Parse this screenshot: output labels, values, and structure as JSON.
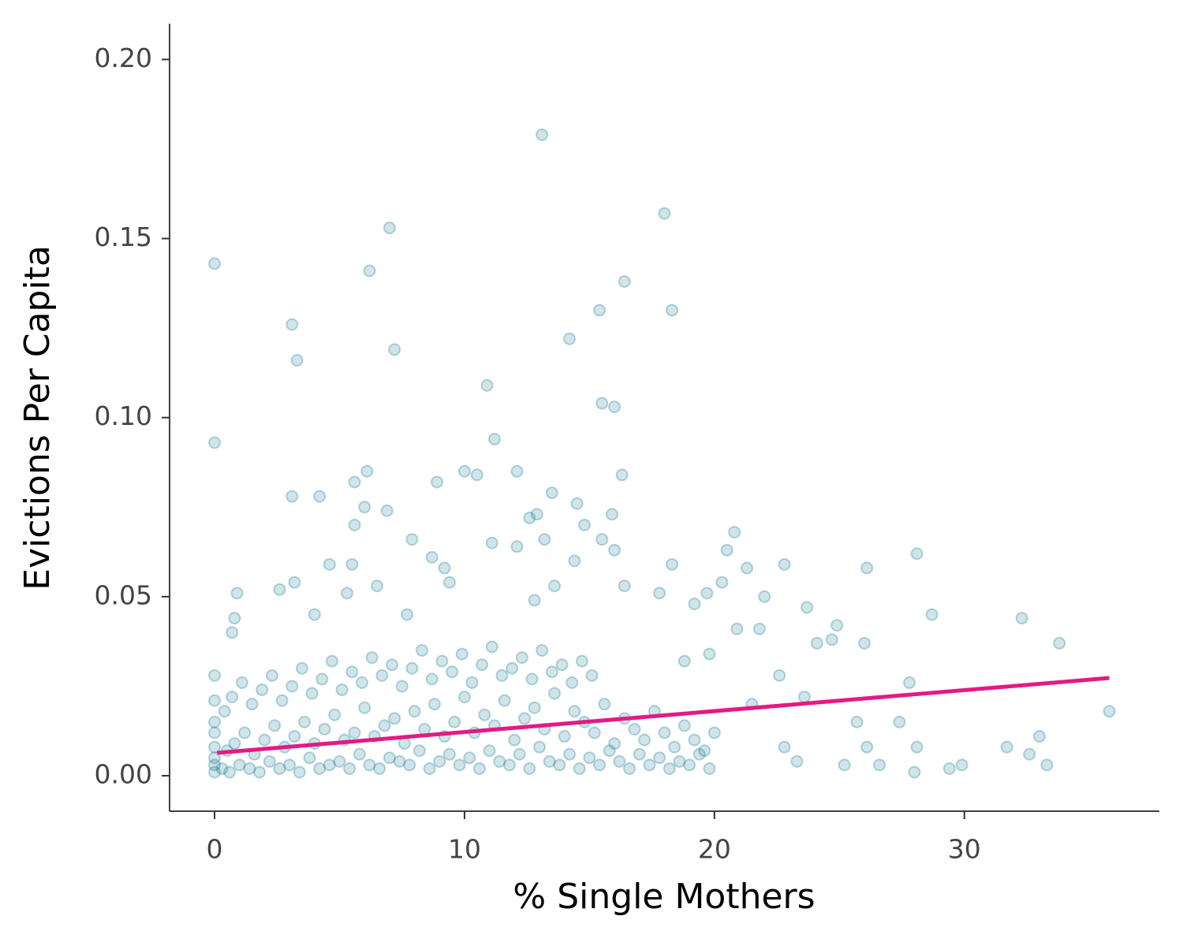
{
  "chart_data": {
    "type": "scatter",
    "x_label": "% Single Mothers",
    "y_label": "Evictions Per Capita",
    "color": "#137a93",
    "xlim": [
      -1.8,
      37.8
    ],
    "ylim": [
      -0.0099,
      0.21
    ],
    "xticks": [
      0,
      10,
      20,
      30
    ],
    "yticks": [
      {
        "value": 0,
        "label": "0.00"
      },
      {
        "value": 0.05,
        "label": "0.05"
      },
      {
        "value": 0.1,
        "label": "0.10"
      },
      {
        "value": 0.15,
        "label": "0.15"
      },
      {
        "value": 0.2,
        "label": "0.20"
      }
    ],
    "x": [
      0,
      0,
      3.1,
      3.3,
      6.2,
      7.0,
      7.2,
      13.1,
      18,
      18.3,
      16.4,
      15.4,
      14.2,
      10.9,
      15.5,
      16,
      11.2,
      3.1,
      4.2,
      5.6,
      6.1,
      8.9,
      10,
      10.5,
      12.1,
      13.5,
      16.3,
      14.5,
      12.6,
      12.9,
      14.8,
      15.9,
      6.0,
      6.9,
      5.6,
      7.9,
      11.1,
      12.1,
      13.2,
      15.5,
      16,
      20.5,
      20.8,
      28.1,
      8.7,
      9.2,
      14.4,
      18.3,
      21.3,
      22.8,
      26.1,
      4.6,
      5.5,
      3.2,
      2.6,
      0.9,
      5.3,
      6.5,
      9.4,
      12.8,
      13.6,
      16.4,
      17.8,
      19.7,
      20.3,
      22,
      23.7,
      24.9,
      32.3,
      33.8,
      28.7,
      35.8,
      29.9,
      29.4,
      31.7,
      32.6,
      33,
      33.3,
      28.1,
      27.8,
      27.4,
      28,
      26.6,
      26.1,
      25.2,
      25.7,
      26,
      24.7,
      24.1,
      23.6,
      22.6,
      22.8,
      23.3,
      21.5,
      20.9,
      21.8,
      19.8,
      19.2,
      18.8,
      0.7,
      0.8,
      4,
      7.7,
      0,
      0,
      0,
      0,
      0,
      0,
      0,
      0,
      0.3,
      0.6,
      1,
      1.4,
      1.8,
      2.2,
      2.6,
      3,
      3.4,
      3.8,
      4.2,
      4.6,
      5,
      5.4,
      5.8,
      6.2,
      6.6,
      7,
      7.4,
      7.8,
      8.2,
      8.6,
      9,
      9.4,
      9.8,
      10.2,
      10.6,
      11,
      11.4,
      11.8,
      12.2,
      12.6,
      13,
      13.4,
      13.8,
      14.2,
      14.6,
      15,
      15.4,
      15.8,
      16.2,
      16.6,
      17,
      17.4,
      17.8,
      18.2,
      18.6,
      19,
      19.4,
      19.8,
      0.5,
      0.8,
      1.2,
      1.6,
      2,
      2.4,
      2.8,
      3.2,
      3.6,
      4,
      4.4,
      4.8,
      5.2,
      5.6,
      6,
      6.4,
      6.8,
      7.2,
      7.6,
      8,
      8.4,
      8.8,
      9.2,
      9.6,
      10,
      10.4,
      10.8,
      11.2,
      11.6,
      12,
      12.4,
      12.8,
      13.2,
      13.6,
      14,
      14.4,
      14.8,
      15.2,
      15.6,
      16,
      16.4,
      16.8,
      17.2,
      17.6,
      18,
      18.4,
      18.8,
      19.2,
      19.6,
      20,
      0.4,
      0.7,
      1.1,
      1.5,
      1.9,
      2.3,
      2.7,
      3.1,
      3.5,
      3.9,
      4.3,
      4.7,
      5.1,
      5.5,
      5.9,
      6.3,
      6.7,
      7.1,
      7.5,
      7.9,
      8.3,
      8.7,
      9.1,
      9.5,
      9.9,
      10.3,
      10.7,
      11.1,
      11.5,
      11.9,
      12.3,
      12.7,
      13.1,
      13.5,
      13.9,
      14.3,
      14.7,
      15.1
    ],
    "values": [
      0.143,
      0.093,
      0.126,
      0.116,
      0.141,
      0.153,
      0.119,
      0.179,
      0.157,
      0.13,
      0.138,
      0.13,
      0.122,
      0.109,
      0.104,
      0.103,
      0.094,
      0.078,
      0.078,
      0.082,
      0.085,
      0.082,
      0.085,
      0.084,
      0.085,
      0.079,
      0.084,
      0.076,
      0.072,
      0.073,
      0.07,
      0.073,
      0.075,
      0.074,
      0.07,
      0.066,
      0.065,
      0.064,
      0.066,
      0.066,
      0.063,
      0.063,
      0.068,
      0.062,
      0.061,
      0.058,
      0.06,
      0.059,
      0.058,
      0.059,
      0.058,
      0.059,
      0.059,
      0.054,
      0.052,
      0.051,
      0.051,
      0.053,
      0.054,
      0.049,
      0.053,
      0.053,
      0.051,
      0.051,
      0.054,
      0.05,
      0.047,
      0.042,
      0.044,
      0.037,
      0.045,
      0.018,
      0.003,
      0.002,
      0.008,
      0.006,
      0.011,
      0.003,
      0.008,
      0.026,
      0.015,
      0.001,
      0.003,
      0.008,
      0.003,
      0.015,
      0.037,
      0.038,
      0.037,
      0.022,
      0.028,
      0.008,
      0.004,
      0.02,
      0.041,
      0.041,
      0.034,
      0.048,
      0.032,
      0.04,
      0.044,
      0.045,
      0.045,
      0.028,
      0.021,
      0.015,
      0.012,
      0.008,
      0.005,
      0.003,
      0.001,
      0.002,
      0.001,
      0.003,
      0.002,
      0.001,
      0.004,
      0.002,
      0.003,
      0.001,
      0.005,
      0.002,
      0.003,
      0.004,
      0.002,
      0.006,
      0.003,
      0.002,
      0.005,
      0.004,
      0.003,
      0.007,
      0.002,
      0.004,
      0.006,
      0.003,
      0.005,
      0.002,
      0.007,
      0.004,
      0.003,
      0.006,
      0.002,
      0.008,
      0.004,
      0.003,
      0.006,
      0.002,
      0.005,
      0.003,
      0.007,
      0.004,
      0.002,
      0.006,
      0.003,
      0.005,
      0.002,
      0.004,
      0.003,
      0.006,
      0.002,
      0.007,
      0.009,
      0.012,
      0.006,
      0.01,
      0.014,
      0.008,
      0.011,
      0.015,
      0.009,
      0.013,
      0.017,
      0.01,
      0.012,
      0.019,
      0.011,
      0.014,
      0.016,
      0.009,
      0.018,
      0.013,
      0.02,
      0.011,
      0.015,
      0.022,
      0.012,
      0.017,
      0.014,
      0.021,
      0.01,
      0.016,
      0.019,
      0.013,
      0.023,
      0.011,
      0.018,
      0.015,
      0.012,
      0.02,
      0.009,
      0.016,
      0.013,
      0.01,
      0.018,
      0.012,
      0.008,
      0.014,
      0.01,
      0.007,
      0.012,
      0.018,
      0.022,
      0.026,
      0.02,
      0.024,
      0.028,
      0.021,
      0.025,
      0.03,
      0.023,
      0.027,
      0.032,
      0.024,
      0.029,
      0.026,
      0.033,
      0.028,
      0.031,
      0.025,
      0.03,
      0.035,
      0.027,
      0.032,
      0.029,
      0.034,
      0.026,
      0.031,
      0.036,
      0.028,
      0.03,
      0.033,
      0.027,
      0.035,
      0.029,
      0.031,
      0.026,
      0.032,
      0.028
    ],
    "trend": {
      "color": "#e31a84",
      "x": [
        0.1,
        35.8
      ],
      "values": [
        0.0064,
        0.0273
      ]
    }
  }
}
